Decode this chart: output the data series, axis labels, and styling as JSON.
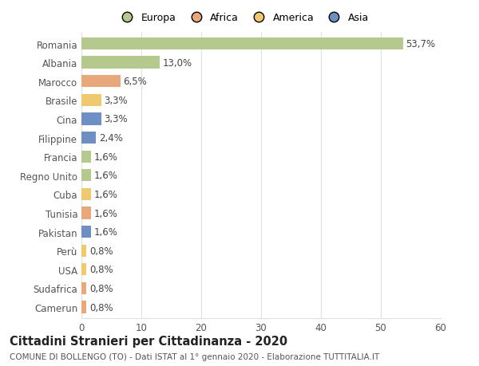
{
  "categories": [
    "Romania",
    "Albania",
    "Marocco",
    "Brasile",
    "Cina",
    "Filippine",
    "Francia",
    "Regno Unito",
    "Cuba",
    "Tunisia",
    "Pakistan",
    "Perù",
    "USA",
    "Sudafrica",
    "Camerun"
  ],
  "values": [
    53.7,
    13.0,
    6.5,
    3.3,
    3.3,
    2.4,
    1.6,
    1.6,
    1.6,
    1.6,
    1.6,
    0.8,
    0.8,
    0.8,
    0.8
  ],
  "labels": [
    "53,7%",
    "13,0%",
    "6,5%",
    "3,3%",
    "3,3%",
    "2,4%",
    "1,6%",
    "1,6%",
    "1,6%",
    "1,6%",
    "1,6%",
    "0,8%",
    "0,8%",
    "0,8%",
    "0,8%"
  ],
  "colors": [
    "#b5c98e",
    "#b5c98e",
    "#e8a87c",
    "#f0c96e",
    "#6e8fc4",
    "#6e8fc4",
    "#b5c98e",
    "#b5c98e",
    "#f0c96e",
    "#e8a87c",
    "#6e8fc4",
    "#f0c96e",
    "#f0c96e",
    "#e8a87c",
    "#e8a87c"
  ],
  "legend_labels": [
    "Europa",
    "Africa",
    "America",
    "Asia"
  ],
  "legend_colors": [
    "#b5c98e",
    "#e8a87c",
    "#f0c96e",
    "#6e8fc4"
  ],
  "xlim": [
    0,
    60
  ],
  "xticks": [
    0,
    10,
    20,
    30,
    40,
    50,
    60
  ],
  "title": "Cittadini Stranieri per Cittadinanza - 2020",
  "subtitle": "COMUNE DI BOLLENGO (TO) - Dati ISTAT al 1° gennaio 2020 - Elaborazione TUTTITALIA.IT",
  "background_color": "#ffffff",
  "grid_color": "#e0e0e0",
  "bar_height": 0.65,
  "title_fontsize": 10.5,
  "subtitle_fontsize": 7.5,
  "tick_fontsize": 8.5,
  "label_fontsize": 8.5
}
